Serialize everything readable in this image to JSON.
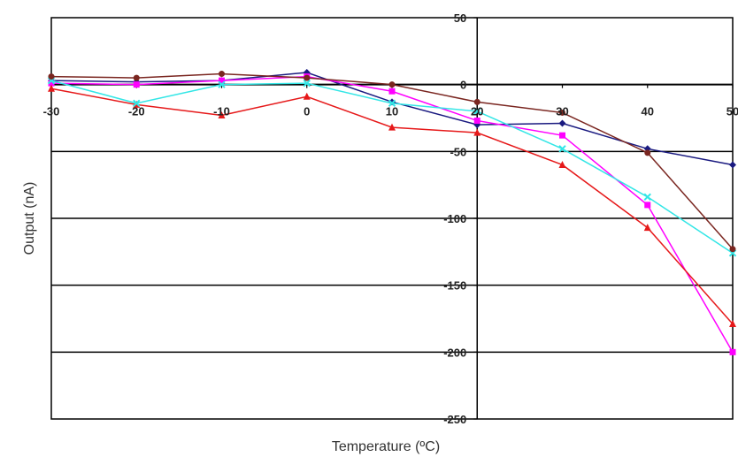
{
  "chart_data": {
    "type": "line",
    "title": "",
    "xlabel": "Temperature (ºC)",
    "ylabel": "Output (nA)",
    "xlim": [
      -30,
      50
    ],
    "ylim": [
      -250,
      50
    ],
    "x_ticks": [
      "-30",
      "-20",
      "-10",
      "0",
      "10",
      "20",
      "30",
      "40",
      "50"
    ],
    "y_ticks": [
      "50",
      "0",
      "-50",
      "-100",
      "-150",
      "-200",
      "-250"
    ],
    "x_tick_values": [
      -30,
      -20,
      -10,
      0,
      10,
      20,
      30,
      40,
      50
    ],
    "y_tick_values": [
      50,
      0,
      -50,
      -100,
      -150,
      -200,
      -250
    ],
    "grid": "horizontal",
    "x": [
      -30,
      -20,
      -10,
      0,
      10,
      20,
      30,
      40,
      50
    ],
    "series": [
      {
        "color": "#1a1a80",
        "marker": "diamond",
        "values": [
          3,
          2,
          3,
          9,
          -13,
          -30,
          -29,
          -48,
          -60
        ]
      },
      {
        "color": "#ff00ff",
        "marker": "square",
        "values": [
          1,
          0,
          3,
          6,
          -5,
          -27,
          -38,
          -90,
          -200
        ]
      },
      {
        "color": "#e6191a",
        "marker": "triangle",
        "values": [
          -3,
          -15,
          -23,
          -9,
          -32,
          -36,
          -60,
          -107,
          -179
        ]
      },
      {
        "color": "#33e6e6",
        "marker": "x",
        "values": [
          3,
          -14,
          0,
          1,
          -14,
          -20,
          -48,
          -84,
          -126
        ]
      },
      {
        "color": "#7a2620",
        "marker": "circle",
        "values": [
          6,
          5,
          8,
          5,
          0,
          -13,
          -21,
          -51,
          -123
        ]
      }
    ]
  }
}
